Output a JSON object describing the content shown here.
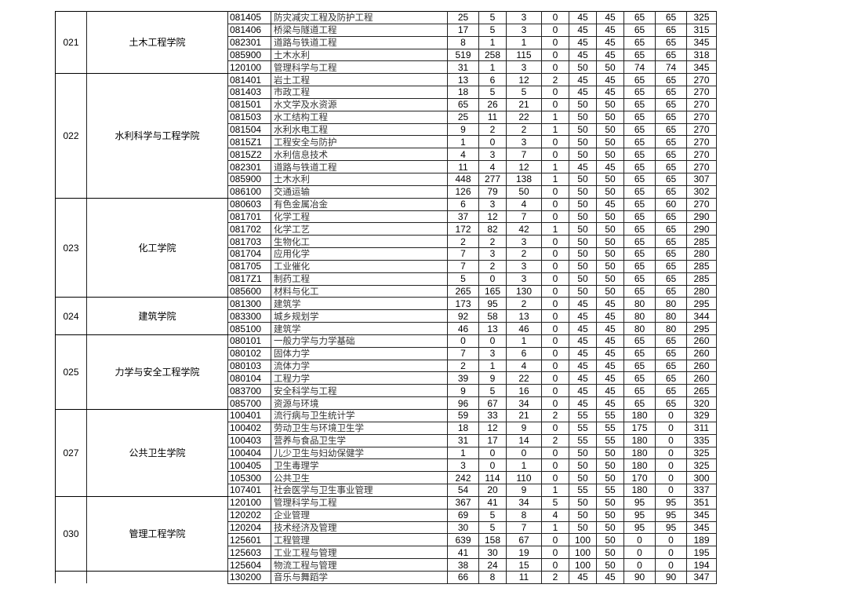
{
  "groups": [
    {
      "code": "021",
      "name": "土木工程学院",
      "rows": [
        [
          "081405",
          "防灾减灾工程及防护工程",
          "25",
          "5",
          "3",
          "0",
          "45",
          "45",
          "65",
          "65",
          "325"
        ],
        [
          "081406",
          "桥梁与隧道工程",
          "17",
          "5",
          "3",
          "0",
          "45",
          "45",
          "65",
          "65",
          "315"
        ],
        [
          "082301",
          "道路与铁道工程",
          "8",
          "1",
          "1",
          "0",
          "45",
          "45",
          "65",
          "65",
          "345"
        ],
        [
          "085900",
          "土木水利",
          "519",
          "258",
          "115",
          "0",
          "45",
          "45",
          "65",
          "65",
          "318"
        ],
        [
          "120100",
          "管理科学与工程",
          "31",
          "1",
          "3",
          "0",
          "50",
          "50",
          "74",
          "74",
          "345"
        ]
      ]
    },
    {
      "code": "022",
      "name": "水利科学与工程学院",
      "rows": [
        [
          "081401",
          "岩土工程",
          "13",
          "6",
          "12",
          "2",
          "45",
          "45",
          "65",
          "65",
          "270"
        ],
        [
          "081403",
          "市政工程",
          "18",
          "5",
          "5",
          "0",
          "45",
          "45",
          "65",
          "65",
          "270"
        ],
        [
          "081501",
          "水文学及水资源",
          "65",
          "26",
          "21",
          "0",
          "50",
          "50",
          "65",
          "65",
          "270"
        ],
        [
          "081503",
          "水工结构工程",
          "25",
          "11",
          "22",
          "1",
          "50",
          "50",
          "65",
          "65",
          "270"
        ],
        [
          "081504",
          "水利水电工程",
          "9",
          "2",
          "2",
          "1",
          "50",
          "50",
          "65",
          "65",
          "270"
        ],
        [
          "0815Z1",
          "工程安全与防护",
          "1",
          "0",
          "3",
          "0",
          "50",
          "50",
          "65",
          "65",
          "270"
        ],
        [
          "0815Z2",
          "水利信息技术",
          "4",
          "3",
          "7",
          "0",
          "50",
          "50",
          "65",
          "65",
          "270"
        ],
        [
          "082301",
          "道路与铁道工程",
          "11",
          "4",
          "12",
          "1",
          "45",
          "45",
          "65",
          "65",
          "270"
        ],
        [
          "085900",
          "土木水利",
          "448",
          "277",
          "138",
          "1",
          "50",
          "50",
          "65",
          "65",
          "307"
        ],
        [
          "086100",
          "交通运输",
          "126",
          "79",
          "50",
          "0",
          "50",
          "50",
          "65",
          "65",
          "302"
        ]
      ]
    },
    {
      "code": "023",
      "name": "化工学院",
      "rows": [
        [
          "080603",
          "有色金属冶金",
          "6",
          "3",
          "4",
          "0",
          "50",
          "45",
          "65",
          "60",
          "270"
        ],
        [
          "081701",
          "化学工程",
          "37",
          "12",
          "7",
          "0",
          "50",
          "50",
          "65",
          "65",
          "290"
        ],
        [
          "081702",
          "化学工艺",
          "172",
          "82",
          "42",
          "1",
          "50",
          "50",
          "65",
          "65",
          "290"
        ],
        [
          "081703",
          "生物化工",
          "2",
          "2",
          "3",
          "0",
          "50",
          "50",
          "65",
          "65",
          "285"
        ],
        [
          "081704",
          "应用化学",
          "7",
          "3",
          "2",
          "0",
          "50",
          "50",
          "65",
          "65",
          "280"
        ],
        [
          "081705",
          "工业催化",
          "7",
          "2",
          "3",
          "0",
          "50",
          "50",
          "65",
          "65",
          "285"
        ],
        [
          "0817Z1",
          "制药工程",
          "5",
          "0",
          "3",
          "0",
          "50",
          "50",
          "65",
          "65",
          "285"
        ],
        [
          "085600",
          "材料与化工",
          "265",
          "165",
          "130",
          "0",
          "50",
          "50",
          "65",
          "65",
          "280"
        ]
      ]
    },
    {
      "code": "024",
      "name": "建筑学院",
      "rows": [
        [
          "081300",
          "建筑学",
          "173",
          "95",
          "2",
          "0",
          "45",
          "45",
          "80",
          "80",
          "295"
        ],
        [
          "083300",
          "城乡规划学",
          "92",
          "58",
          "13",
          "0",
          "45",
          "45",
          "80",
          "80",
          "344"
        ],
        [
          "085100",
          "建筑学",
          "46",
          "13",
          "46",
          "0",
          "45",
          "45",
          "80",
          "80",
          "295"
        ]
      ]
    },
    {
      "code": "025",
      "name": "力学与安全工程学院",
      "rows": [
        [
          "080101",
          "一般力学与力学基础",
          "0",
          "0",
          "1",
          "0",
          "45",
          "45",
          "65",
          "65",
          "260"
        ],
        [
          "080102",
          "固体力学",
          "7",
          "3",
          "6",
          "0",
          "45",
          "45",
          "65",
          "65",
          "260"
        ],
        [
          "080103",
          "流体力学",
          "2",
          "1",
          "4",
          "0",
          "45",
          "45",
          "65",
          "65",
          "260"
        ],
        [
          "080104",
          "工程力学",
          "39",
          "9",
          "22",
          "0",
          "45",
          "45",
          "65",
          "65",
          "260"
        ],
        [
          "083700",
          "安全科学与工程",
          "9",
          "5",
          "16",
          "0",
          "45",
          "45",
          "65",
          "65",
          "265"
        ],
        [
          "085700",
          "资源与环境",
          "96",
          "67",
          "34",
          "0",
          "45",
          "45",
          "65",
          "65",
          "320"
        ]
      ]
    },
    {
      "code": "027",
      "name": "公共卫生学院",
      "rows": [
        [
          "100401",
          "流行病与卫生统计学",
          "59",
          "33",
          "21",
          "2",
          "55",
          "55",
          "180",
          "0",
          "329"
        ],
        [
          "100402",
          "劳动卫生与环境卫生学",
          "18",
          "12",
          "9",
          "0",
          "55",
          "55",
          "175",
          "0",
          "311"
        ],
        [
          "100403",
          "营养与食品卫生学",
          "31",
          "17",
          "14",
          "2",
          "55",
          "55",
          "180",
          "0",
          "335"
        ],
        [
          "100404",
          "儿少卫生与妇幼保健学",
          "1",
          "0",
          "0",
          "0",
          "50",
          "50",
          "180",
          "0",
          "325"
        ],
        [
          "100405",
          "卫生毒理学",
          "3",
          "0",
          "1",
          "0",
          "50",
          "50",
          "180",
          "0",
          "325"
        ],
        [
          "105300",
          "公共卫生",
          "242",
          "114",
          "110",
          "0",
          "50",
          "50",
          "170",
          "0",
          "300"
        ],
        [
          "107401",
          "社会医学与卫生事业管理",
          "54",
          "20",
          "9",
          "1",
          "55",
          "55",
          "180",
          "0",
          "337"
        ]
      ]
    },
    {
      "code": "030",
      "name": "管理工程学院",
      "rows": [
        [
          "120100",
          "管理科学与工程",
          "367",
          "41",
          "34",
          "5",
          "50",
          "50",
          "95",
          "95",
          "351"
        ],
        [
          "120202",
          "企业管理",
          "69",
          "5",
          "8",
          "4",
          "50",
          "50",
          "95",
          "95",
          "345"
        ],
        [
          "120204",
          "技术经济及管理",
          "30",
          "5",
          "7",
          "1",
          "50",
          "50",
          "95",
          "95",
          "345"
        ],
        [
          "125601",
          "工程管理",
          "639",
          "158",
          "67",
          "0",
          "100",
          "50",
          "0",
          "0",
          "189"
        ],
        [
          "125603",
          "工业工程与管理",
          "41",
          "30",
          "19",
          "0",
          "100",
          "50",
          "0",
          "0",
          "195"
        ],
        [
          "125604",
          "物流工程与管理",
          "38",
          "24",
          "15",
          "0",
          "100",
          "50",
          "0",
          "0",
          "194"
        ]
      ]
    },
    {
      "code": "",
      "name": "",
      "rows": [
        [
          "130200",
          "音乐与舞蹈学",
          "66",
          "8",
          "11",
          "2",
          "45",
          "45",
          "90",
          "90",
          "347"
        ]
      ]
    }
  ]
}
